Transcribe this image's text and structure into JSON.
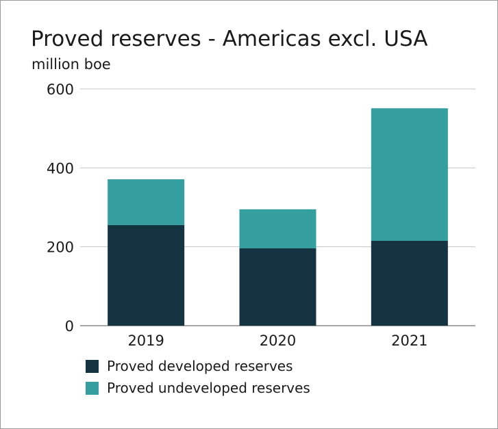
{
  "chart_data": {
    "type": "bar",
    "stacked": true,
    "title": "Proved reserves - Americas excl. USA",
    "subtitle": "million boe",
    "xlabel": "",
    "ylabel": "million boe",
    "categories": [
      "2019",
      "2020",
      "2021"
    ],
    "series": [
      {
        "name": "Proved developed reserves",
        "color": "#143441",
        "values": [
          255,
          196,
          215
        ]
      },
      {
        "name": "Proved undeveloped reserves",
        "color": "#359e9f",
        "values": [
          116,
          99,
          336
        ]
      }
    ],
    "ylim": [
      0,
      600
    ],
    "yticks": [
      0,
      200,
      400,
      600
    ],
    "grid": true,
    "legend": "bottom-left"
  }
}
